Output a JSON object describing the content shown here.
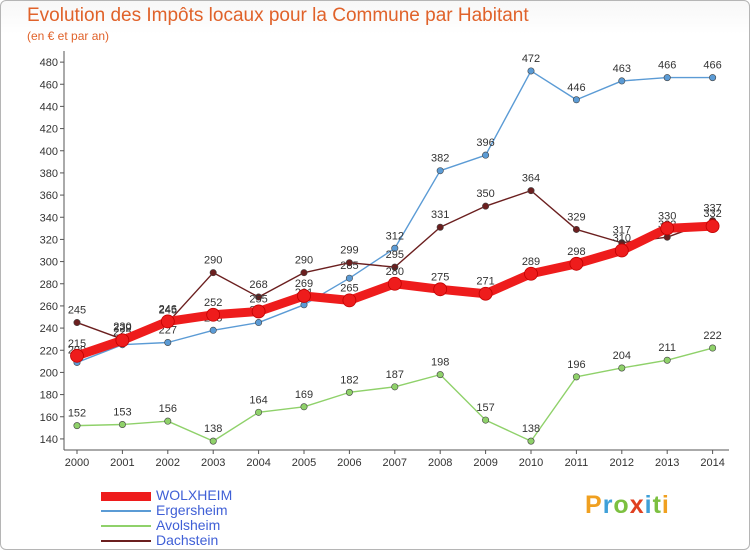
{
  "header": {
    "title": "Evolution des Impôts locaux pour la Commune par Habitant",
    "subtitle": "(en € et par an)"
  },
  "logo": {
    "letters": [
      "P",
      "r",
      "o",
      "x",
      "i",
      "t",
      "i"
    ],
    "colors": [
      "#f0a020",
      "#3fa0d8",
      "#7cc040",
      "#e04020",
      "#3fa0d8",
      "#7cc040",
      "#f0a020"
    ]
  },
  "chart_data": {
    "type": "line",
    "title": "Evolution des Impôts locaux pour la Commune par Habitant",
    "subtitle": "(en € et par an)",
    "xlabel": "",
    "ylabel": "",
    "x": [
      "2000",
      "2001",
      "2002",
      "2003",
      "2004",
      "2005",
      "2006",
      "2007",
      "2008",
      "2009",
      "2010",
      "2011",
      "2012",
      "2013",
      "2014"
    ],
    "ylim": [
      130,
      490
    ],
    "yticks": [
      140,
      160,
      180,
      200,
      220,
      240,
      260,
      280,
      300,
      320,
      340,
      360,
      380,
      400,
      420,
      440,
      460,
      480
    ],
    "grid": false,
    "legend_position": "bottom-left",
    "series": [
      {
        "name": "Ergersheim",
        "color": "#5b9bd5",
        "values": [
          209,
          225,
          227,
          238,
          245,
          261,
          285,
          312,
          382,
          396,
          472,
          446,
          463,
          466,
          466
        ]
      },
      {
        "name": "Avolsheim",
        "color": "#8fd16a",
        "values": [
          152,
          153,
          156,
          138,
          164,
          169,
          182,
          187,
          198,
          157,
          138,
          196,
          204,
          211,
          222
        ]
      },
      {
        "name": "Dachstein",
        "color": "#6b1f1f",
        "values": [
          245,
          230,
          245,
          290,
          268,
          290,
          299,
          295,
          331,
          350,
          364,
          329,
          317,
          322,
          337
        ]
      },
      {
        "name": "WOLXHEIM",
        "color": "#ee1c1c",
        "values": [
          215,
          229,
          246,
          252,
          255,
          269,
          265,
          280,
          275,
          271,
          289,
          298,
          310,
          330,
          332
        ]
      }
    ]
  }
}
